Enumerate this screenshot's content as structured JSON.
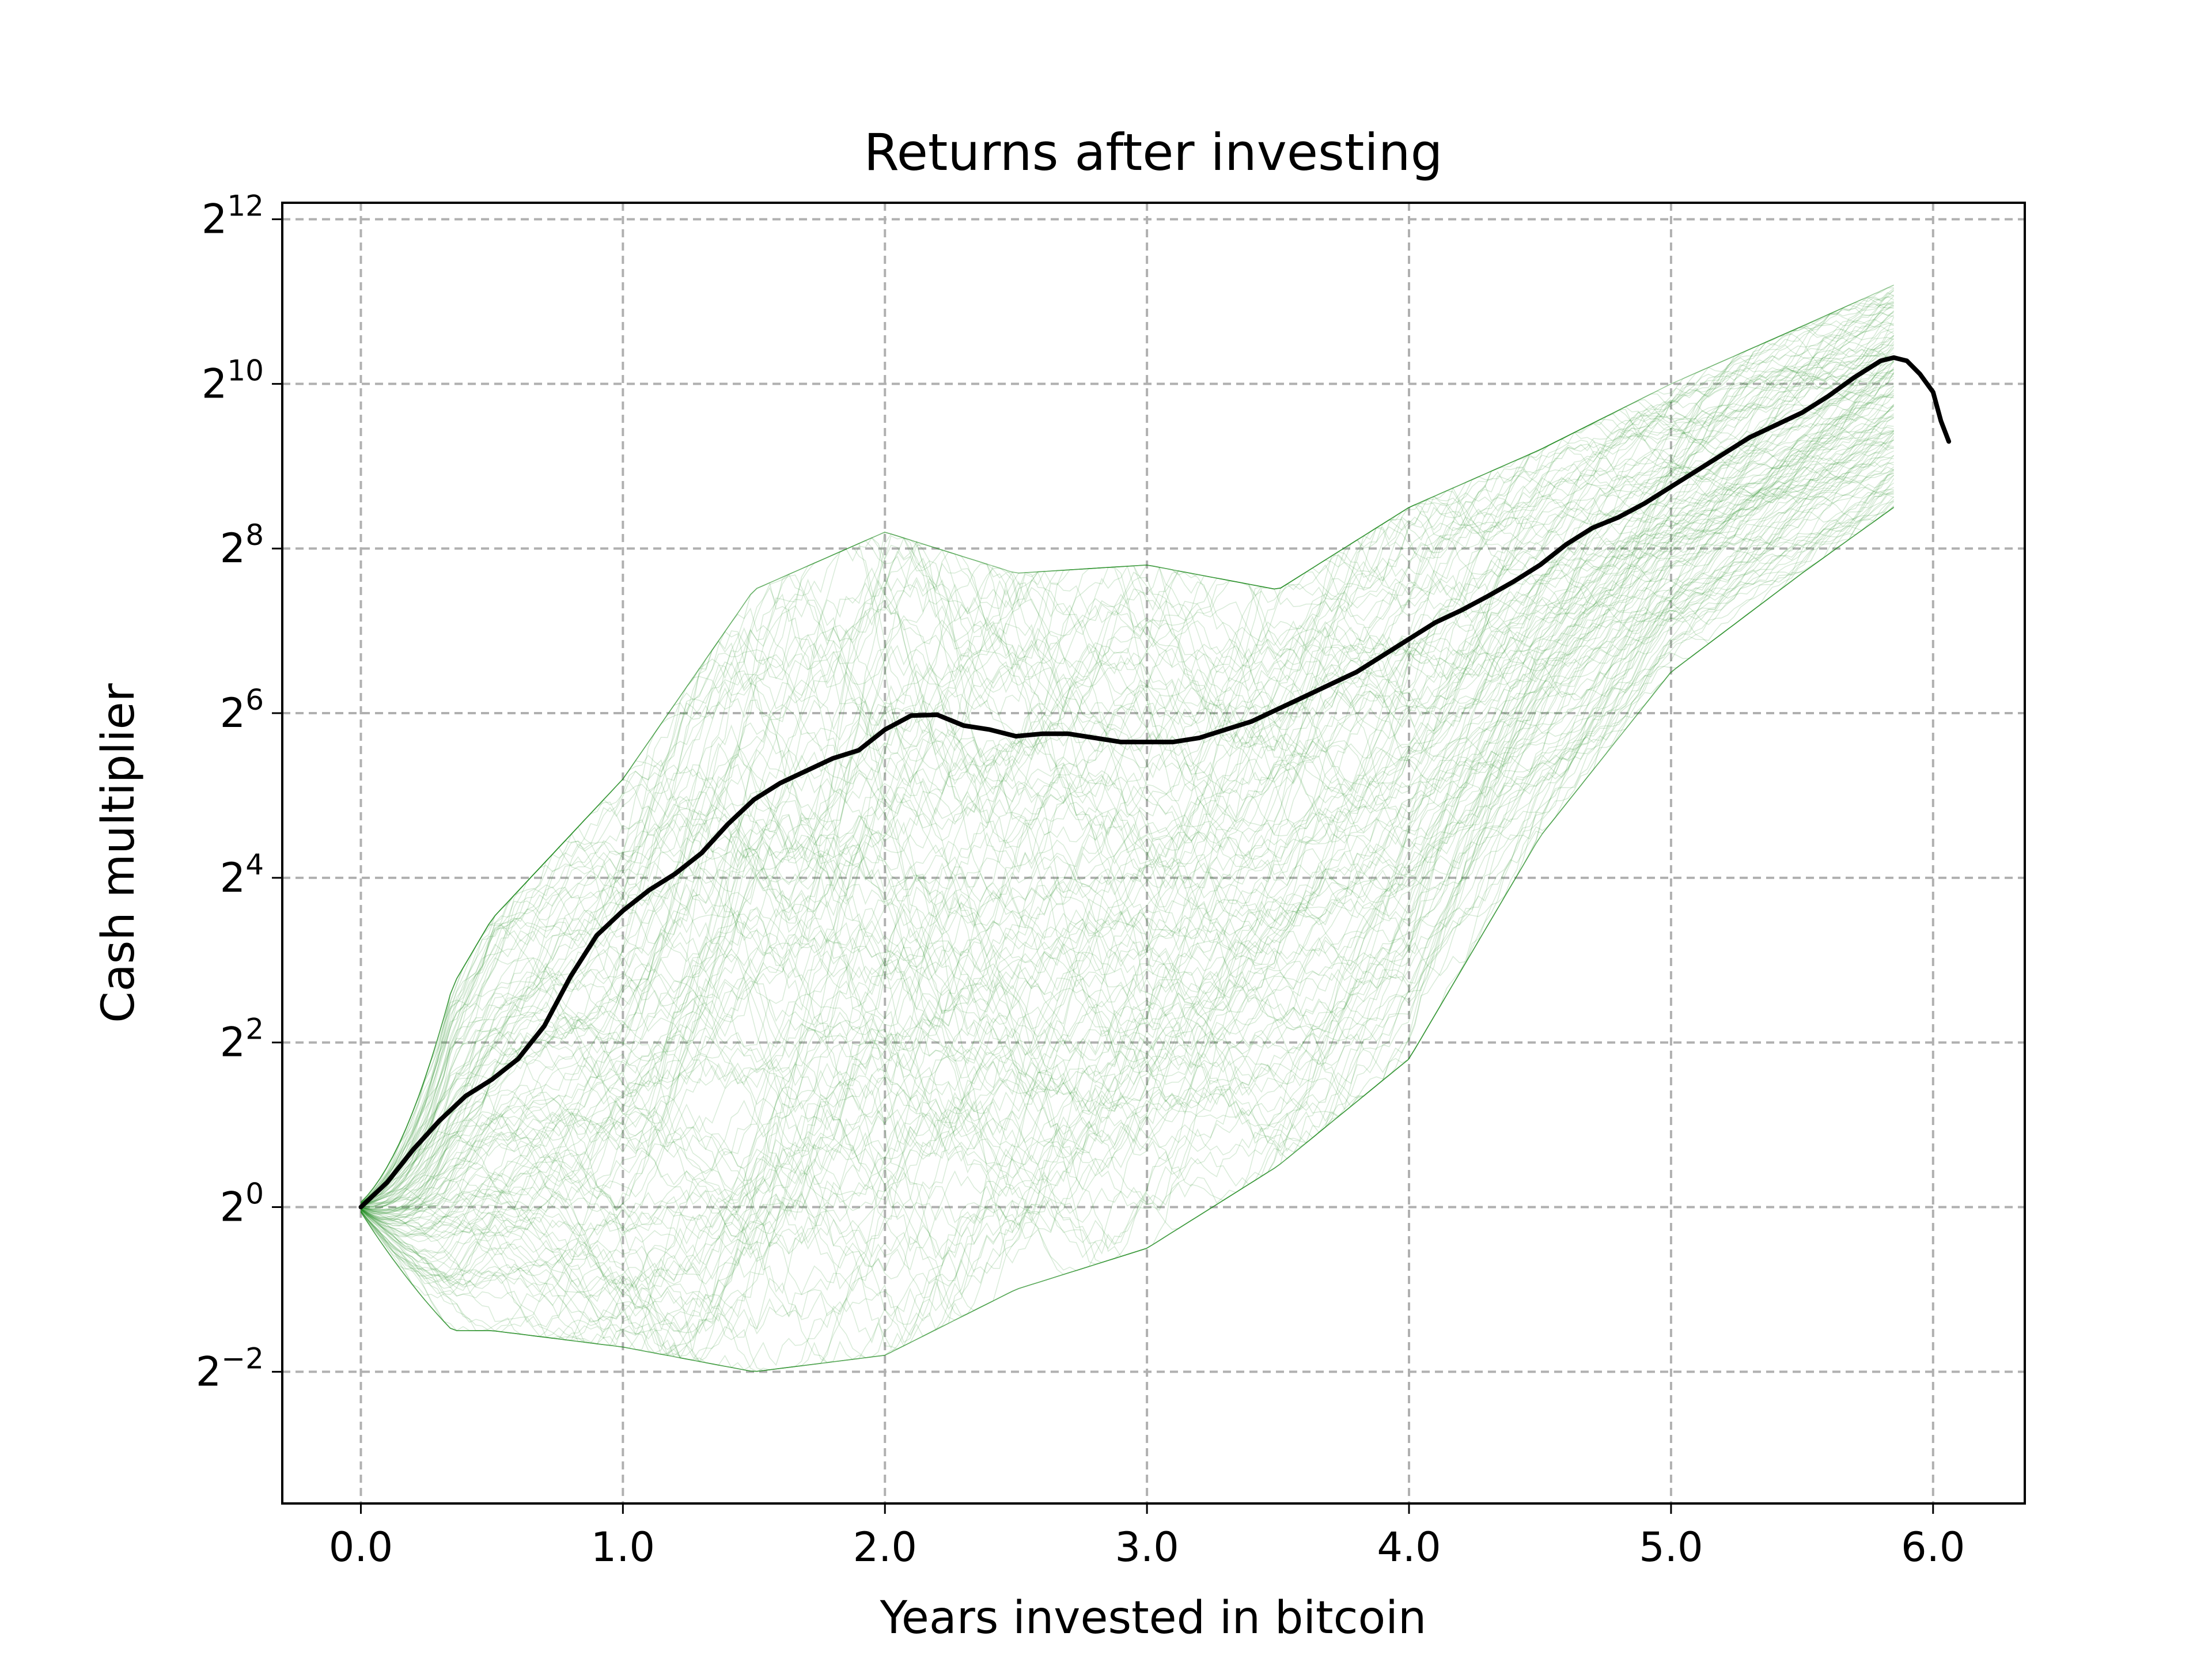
{
  "chart_data": {
    "type": "line",
    "title": "Returns after investing",
    "xlabel": "Years invested in bitcoin",
    "ylabel": "Cash multiplier",
    "xscale": "linear",
    "yscale": "log2",
    "xlim": [
      -0.3,
      6.35
    ],
    "ylim_log2": [
      -3.6,
      12.2
    ],
    "x_ticks": [
      {
        "value": 0,
        "label": "0.0"
      },
      {
        "value": 1,
        "label": "1.0"
      },
      {
        "value": 2,
        "label": "2.0"
      },
      {
        "value": 3,
        "label": "3.0"
      },
      {
        "value": 4,
        "label": "4.0"
      },
      {
        "value": 5,
        "label": "5.0"
      },
      {
        "value": 6,
        "label": "6.0"
      }
    ],
    "y_ticks": [
      {
        "log2": -2,
        "base": "2",
        "exp": "−2"
      },
      {
        "log2": 0,
        "base": "2",
        "exp": "0"
      },
      {
        "log2": 2,
        "base": "2",
        "exp": "2"
      },
      {
        "log2": 4,
        "base": "2",
        "exp": "4"
      },
      {
        "log2": 6,
        "base": "2",
        "exp": "6"
      },
      {
        "log2": 8,
        "base": "2",
        "exp": "8"
      },
      {
        "log2": 10,
        "base": "2",
        "exp": "10"
      },
      {
        "log2": 12,
        "base": "2",
        "exp": "12"
      }
    ],
    "grid": true,
    "series": [
      {
        "style": "many individual return paths, thin translucent green",
        "color": "#1a8a1a",
        "envelope_log2": [
          {
            "x": 0.0,
            "low": -1.5,
            "high": 0.8
          },
          {
            "x": 0.5,
            "low": -1.5,
            "high": 3.5
          },
          {
            "x": 1.0,
            "low": -1.7,
            "high": 5.2
          },
          {
            "x": 1.5,
            "low": -2.0,
            "high": 7.5
          },
          {
            "x": 2.0,
            "low": -1.8,
            "high": 8.2
          },
          {
            "x": 2.5,
            "low": -1.0,
            "high": 7.7
          },
          {
            "x": 3.0,
            "low": -0.5,
            "high": 7.8
          },
          {
            "x": 3.5,
            "low": 0.5,
            "high": 7.5
          },
          {
            "x": 4.0,
            "low": 1.8,
            "high": 8.5
          },
          {
            "x": 4.5,
            "low": 4.5,
            "high": 9.2
          },
          {
            "x": 5.0,
            "low": 6.5,
            "high": 10.0
          },
          {
            "x": 5.5,
            "low": 7.7,
            "high": 10.7
          },
          {
            "x": 5.85,
            "low": 8.5,
            "high": 11.2
          }
        ]
      },
      {
        "style": "mean path, thick black",
        "color": "#000000",
        "points_log2": [
          [
            0.0,
            0.0
          ],
          [
            0.1,
            0.3
          ],
          [
            0.2,
            0.7
          ],
          [
            0.3,
            1.05
          ],
          [
            0.4,
            1.35
          ],
          [
            0.5,
            1.55
          ],
          [
            0.6,
            1.8
          ],
          [
            0.7,
            2.2
          ],
          [
            0.8,
            2.8
          ],
          [
            0.9,
            3.3
          ],
          [
            1.0,
            3.6
          ],
          [
            1.1,
            3.85
          ],
          [
            1.2,
            4.05
          ],
          [
            1.3,
            4.3
          ],
          [
            1.4,
            4.65
          ],
          [
            1.5,
            4.95
          ],
          [
            1.6,
            5.15
          ],
          [
            1.7,
            5.3
          ],
          [
            1.8,
            5.45
          ],
          [
            1.9,
            5.55
          ],
          [
            2.0,
            5.8
          ],
          [
            2.1,
            5.97
          ],
          [
            2.2,
            5.98
          ],
          [
            2.3,
            5.85
          ],
          [
            2.4,
            5.8
          ],
          [
            2.5,
            5.72
          ],
          [
            2.6,
            5.75
          ],
          [
            2.7,
            5.75
          ],
          [
            2.8,
            5.7
          ],
          [
            2.9,
            5.65
          ],
          [
            3.0,
            5.65
          ],
          [
            3.1,
            5.65
          ],
          [
            3.2,
            5.7
          ],
          [
            3.3,
            5.8
          ],
          [
            3.4,
            5.9
          ],
          [
            3.5,
            6.05
          ],
          [
            3.6,
            6.2
          ],
          [
            3.7,
            6.35
          ],
          [
            3.8,
            6.5
          ],
          [
            3.9,
            6.7
          ],
          [
            4.0,
            6.9
          ],
          [
            4.1,
            7.1
          ],
          [
            4.2,
            7.25
          ],
          [
            4.3,
            7.42
          ],
          [
            4.4,
            7.6
          ],
          [
            4.5,
            7.8
          ],
          [
            4.6,
            8.05
          ],
          [
            4.7,
            8.25
          ],
          [
            4.8,
            8.38
          ],
          [
            4.9,
            8.55
          ],
          [
            5.0,
            8.75
          ],
          [
            5.1,
            8.95
          ],
          [
            5.2,
            9.15
          ],
          [
            5.3,
            9.35
          ],
          [
            5.4,
            9.5
          ],
          [
            5.5,
            9.65
          ],
          [
            5.6,
            9.85
          ],
          [
            5.7,
            10.08
          ],
          [
            5.75,
            10.18
          ],
          [
            5.8,
            10.28
          ],
          [
            5.85,
            10.32
          ],
          [
            5.9,
            10.28
          ],
          [
            5.95,
            10.12
          ],
          [
            6.0,
            9.9
          ],
          [
            6.03,
            9.55
          ],
          [
            6.06,
            9.3
          ]
        ]
      }
    ]
  }
}
